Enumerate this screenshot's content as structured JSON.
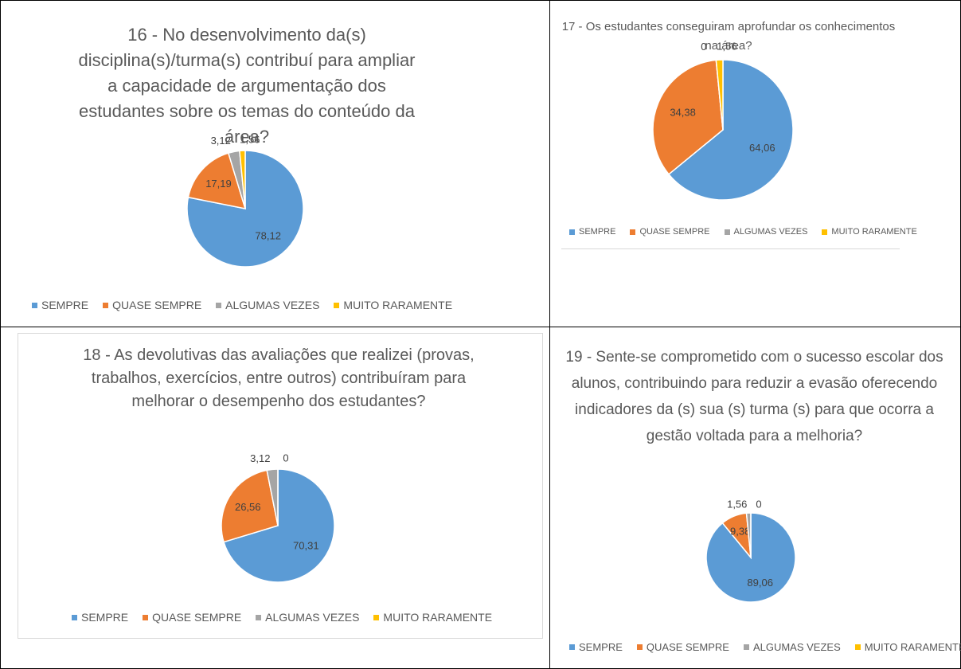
{
  "chart_data": [
    {
      "type": "pie",
      "title": "16 - No desenvolvimento da(s) disciplina(s)/turma(s) contribuí para ampliar a capacidade de argumentação dos estudantes sobre os temas do conteúdo da área?",
      "categories": [
        "SEMPRE",
        "QUASE SEMPRE",
        "ALGUMAS VEZES",
        "MUITO RARAMENTE"
      ],
      "colors": [
        "#5b9bd5",
        "#ed7d31",
        "#a5a5a5",
        "#ffc000"
      ],
      "values": [
        78.12,
        17.19,
        3.12,
        1.56
      ],
      "value_labels": [
        "78,12",
        "17,19",
        "3,12",
        "1,56"
      ]
    },
    {
      "type": "pie",
      "title": "17 - Os estudantes conseguiram aprofundar os conhecimentos na área?",
      "categories": [
        "SEMPRE",
        "QUASE SEMPRE",
        "ALGUMAS VEZES",
        "MUITO RARAMENTE"
      ],
      "colors": [
        "#5b9bd5",
        "#ed7d31",
        "#a5a5a5",
        "#ffc000"
      ],
      "values": [
        64.06,
        34.38,
        0,
        1.56
      ],
      "value_labels": [
        "64,06",
        "34,38",
        "0",
        "1,56"
      ]
    },
    {
      "type": "pie",
      "title": "18 - As devolutivas das avaliações que realizei (provas, trabalhos, exercícios, entre outros) contribuíram para melhorar o desempenho dos estudantes?",
      "categories": [
        "SEMPRE",
        "QUASE SEMPRE",
        "ALGUMAS VEZES",
        "MUITO RARAMENTE"
      ],
      "colors": [
        "#5b9bd5",
        "#ed7d31",
        "#a5a5a5",
        "#ffc000"
      ],
      "values": [
        70.31,
        26.56,
        3.12,
        0
      ],
      "value_labels": [
        "70,31",
        "26,56",
        "3,12",
        "0"
      ]
    },
    {
      "type": "pie",
      "title": "19 - Sente-se comprometido com o sucesso escolar dos alunos, contribuindo para reduzir a evasão oferecendo indicadores da (s) sua (s) turma (s) para que ocorra a gestão voltada para a melhoria?",
      "categories": [
        "SEMPRE",
        "QUASE SEMPRE",
        "ALGUMAS VEZES",
        "MUITO RARAMENTE"
      ],
      "colors": [
        "#5b9bd5",
        "#ed7d31",
        "#a5a5a5",
        "#ffc000"
      ],
      "values": [
        89.06,
        9.38,
        1.56,
        0
      ],
      "value_labels": [
        "89,06",
        "9,38",
        "1,56",
        "0"
      ]
    }
  ]
}
